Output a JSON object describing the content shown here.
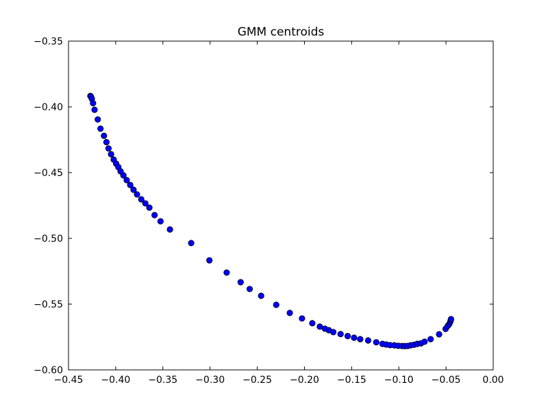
{
  "chart_data": {
    "type": "scatter",
    "title": "GMM centroids",
    "xlabel": "",
    "ylabel": "",
    "xlim": [
      -0.45,
      0.0
    ],
    "ylim": [
      -0.6,
      -0.35
    ],
    "x_ticks": [
      -0.45,
      -0.4,
      -0.35,
      -0.3,
      -0.25,
      -0.2,
      -0.15,
      -0.1,
      -0.05,
      0.0
    ],
    "x_tick_labels": [
      "−0.45",
      "−0.40",
      "−0.35",
      "−0.30",
      "−0.25",
      "−0.20",
      "−0.15",
      "−0.10",
      "−0.05",
      "0.00"
    ],
    "y_ticks": [
      -0.35,
      -0.4,
      -0.45,
      -0.5,
      -0.55,
      -0.6
    ],
    "y_tick_labels": [
      "−0.35",
      "−0.40",
      "−0.45",
      "−0.50",
      "−0.55",
      "−0.60"
    ],
    "grid": false,
    "marker_color": "#0000ff",
    "marker_edge_color": "#000000",
    "series": [
      {
        "points": [
          [
            -0.4268,
            -0.3917
          ],
          [
            -0.4262,
            -0.3922
          ],
          [
            -0.4253,
            -0.3938
          ],
          [
            -0.424,
            -0.3972
          ],
          [
            -0.4224,
            -0.4022
          ],
          [
            -0.419,
            -0.4096
          ],
          [
            -0.4161,
            -0.4166
          ],
          [
            -0.4124,
            -0.422
          ],
          [
            -0.4098,
            -0.4268
          ],
          [
            -0.4076,
            -0.4316
          ],
          [
            -0.4049,
            -0.436
          ],
          [
            -0.4021,
            -0.4401
          ],
          [
            -0.3995,
            -0.4432
          ],
          [
            -0.3972,
            -0.4458
          ],
          [
            -0.3948,
            -0.449
          ],
          [
            -0.3918,
            -0.4521
          ],
          [
            -0.3883,
            -0.4557
          ],
          [
            -0.3846,
            -0.4594
          ],
          [
            -0.3811,
            -0.463
          ],
          [
            -0.3774,
            -0.4666
          ],
          [
            -0.3729,
            -0.4703
          ],
          [
            -0.3686,
            -0.4734
          ],
          [
            -0.3643,
            -0.4766
          ],
          [
            -0.3588,
            -0.4823
          ],
          [
            -0.3525,
            -0.487
          ],
          [
            -0.3425,
            -0.4932
          ],
          [
            -0.32,
            -0.5036
          ],
          [
            -0.3007,
            -0.5167
          ],
          [
            -0.2824,
            -0.526
          ],
          [
            -0.2676,
            -0.5333
          ],
          [
            -0.258,
            -0.5385
          ],
          [
            -0.2459,
            -0.5437
          ],
          [
            -0.2299,
            -0.5505
          ],
          [
            -0.2155,
            -0.5567
          ],
          [
            -0.2026,
            -0.5609
          ],
          [
            -0.1917,
            -0.5645
          ],
          [
            -0.1837,
            -0.5671
          ],
          [
            -0.1783,
            -0.5687
          ],
          [
            -0.1742,
            -0.5698
          ],
          [
            -0.1694,
            -0.5713
          ],
          [
            -0.1617,
            -0.5728
          ],
          [
            -0.1542,
            -0.5743
          ],
          [
            -0.1474,
            -0.5755
          ],
          [
            -0.1409,
            -0.5766
          ],
          [
            -0.1325,
            -0.5776
          ],
          [
            -0.1239,
            -0.579
          ],
          [
            -0.1173,
            -0.5802
          ],
          [
            -0.1133,
            -0.5807
          ],
          [
            -0.1093,
            -0.5812
          ],
          [
            -0.1047,
            -0.5813
          ],
          [
            -0.1006,
            -0.5817
          ],
          [
            -0.0967,
            -0.5818
          ],
          [
            -0.0937,
            -0.5819
          ],
          [
            -0.0907,
            -0.5818
          ],
          [
            -0.0876,
            -0.5813
          ],
          [
            -0.084,
            -0.5809
          ],
          [
            -0.0804,
            -0.5802
          ],
          [
            -0.0765,
            -0.5798
          ],
          [
            -0.0727,
            -0.5786
          ],
          [
            -0.0663,
            -0.5766
          ],
          [
            -0.0573,
            -0.5729
          ],
          [
            -0.0504,
            -0.5688
          ],
          [
            -0.0482,
            -0.5666
          ],
          [
            -0.0466,
            -0.5652
          ],
          [
            -0.0455,
            -0.5635
          ],
          [
            -0.0449,
            -0.562
          ],
          [
            -0.0447,
            -0.5614
          ]
        ]
      }
    ]
  }
}
